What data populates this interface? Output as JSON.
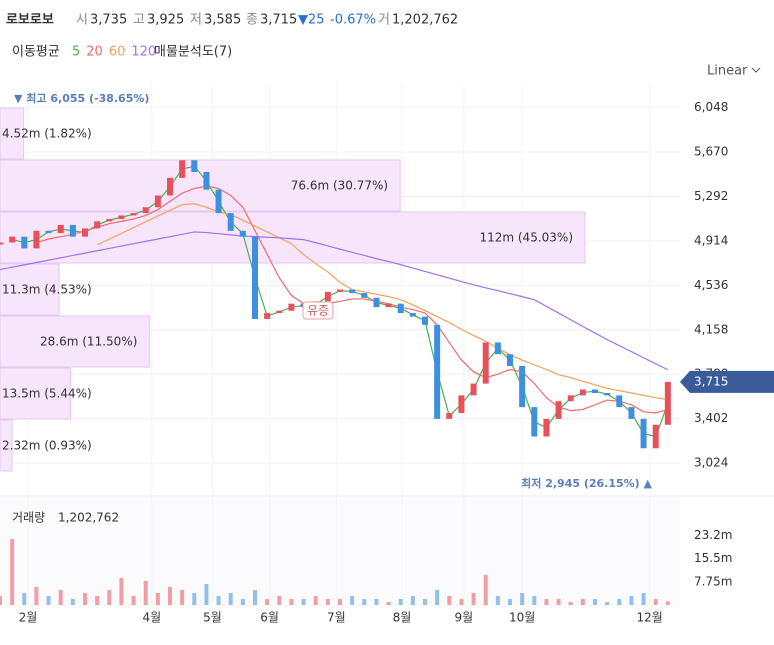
{
  "header": {
    "name": "로보로보",
    "open_label": "시",
    "open": "3,735",
    "high_label": "고",
    "high": "3,925",
    "low_label": "저",
    "low": "3,585",
    "close_label": "종",
    "close": "3,715",
    "change": "▼25",
    "change_pct": "-0.67%",
    "volume_label": "거",
    "volume": "1,202,762",
    "ma_title": "이동평균",
    "scale": "Linear"
  },
  "chart_data": {
    "type": "candlestick",
    "x": [
      0,
      1,
      2,
      3,
      4,
      5,
      6,
      7,
      8,
      9,
      10,
      11,
      12,
      13,
      14,
      15,
      16,
      17,
      18,
      19,
      20,
      21,
      22,
      23,
      24,
      25,
      26,
      27,
      28,
      29,
      30,
      31,
      32,
      33,
      34,
      35,
      36,
      37,
      38,
      39,
      40,
      41,
      42,
      43,
      44,
      45,
      46,
      47,
      48,
      49,
      50,
      51,
      52,
      53,
      54,
      55
    ],
    "xlim": [
      0,
      56
    ],
    "xticks": [
      {
        "value": 2.3,
        "label": "2월"
      },
      {
        "value": 12.5,
        "label": "4월"
      },
      {
        "value": 17.5,
        "label": "5월"
      },
      {
        "value": 22.2,
        "label": "6월"
      },
      {
        "value": 27.7,
        "label": "7월"
      },
      {
        "value": 33.1,
        "label": "8월"
      },
      {
        "value": 38.2,
        "label": "9월"
      },
      {
        "value": 43,
        "label": "10월"
      },
      {
        "value": 53.5,
        "label": "12월"
      }
    ],
    "ylim": [
      2880,
      6240
    ],
    "yticks": [
      {
        "value": 3024,
        "label": "3,024"
      },
      {
        "value": 3402,
        "label": "3,402"
      },
      {
        "value": 3780,
        "label": "3,780"
      },
      {
        "value": 4158,
        "label": "4,158"
      },
      {
        "value": 4536,
        "label": "4,536"
      },
      {
        "value": 4914,
        "label": "4,914"
      },
      {
        "value": 5292,
        "label": "5,292"
      },
      {
        "value": 5670,
        "label": "5,670"
      },
      {
        "value": 6048,
        "label": "6,048"
      }
    ],
    "close": [
      4900,
      4950,
      4850,
      5000,
      4980,
      5050,
      4950,
      5020,
      5080,
      5100,
      5130,
      5150,
      5200,
      5300,
      5450,
      5600,
      5500,
      5350,
      5150,
      5000,
      4950,
      4250,
      4300,
      4320,
      4380,
      4350,
      4400,
      4480,
      4500,
      4470,
      4430,
      4350,
      4380,
      4300,
      4270,
      4200,
      3400,
      3450,
      3600,
      3700,
      4050,
      3950,
      3850,
      3500,
      3250,
      3400,
      3550,
      3600,
      3650,
      3620,
      3600,
      3500,
      3400,
      3150,
      3350,
      3715
    ],
    "up_color": "#e8505b",
    "down_color": "#3d8fe0",
    "series": [
      {
        "name": "5",
        "color": "#4caf50",
        "values": [
          null,
          4925,
          4900,
          4925,
          4990,
          5015,
          5000,
          4985,
          5050,
          5090,
          5115,
          5140,
          5175,
          5250,
          5375,
          5525,
          5550,
          5425,
          5250,
          5075,
          4975,
          4600,
          4275,
          4310,
          4350,
          4365,
          4375,
          4440,
          4490,
          4485,
          4450,
          4390,
          4365,
          4340,
          4285,
          4235,
          3800,
          3425,
          3525,
          3650,
          3875,
          4000,
          3900,
          3675,
          3375,
          3325,
          3475,
          3575,
          3625,
          3635,
          3610,
          3550,
          3450,
          3275,
          3250,
          3530
        ]
      },
      {
        "name": "20",
        "color": "#f06a6a",
        "values": [
          null,
          null,
          null,
          4900,
          4930,
          4950,
          4970,
          5000,
          5030,
          5060,
          5080,
          5100,
          5130,
          5180,
          5250,
          5320,
          5360,
          5380,
          5360,
          5300,
          5200,
          5000,
          4800,
          4600,
          4450,
          4380,
          4360,
          4380,
          4400,
          4420,
          4420,
          4400,
          4380,
          4350,
          4330,
          4300,
          4200,
          4050,
          3900,
          3800,
          3750,
          3780,
          3820,
          3800,
          3700,
          3580,
          3500,
          3470,
          3480,
          3520,
          3560,
          3550,
          3520,
          3460,
          3450,
          3480
        ]
      },
      {
        "name": "60",
        "color": "#f5a05a",
        "values": [
          null,
          null,
          null,
          null,
          null,
          null,
          null,
          null,
          4880,
          4929,
          4978,
          5027,
          5076,
          5125,
          5174,
          5222,
          5230,
          5200,
          5160,
          5137,
          5090,
          5040,
          4990,
          4940,
          4890,
          4797,
          4720,
          4650,
          4560,
          4500,
          4480,
          4460,
          4440,
          4414,
          4370,
          4320,
          4270,
          4220,
          4160,
          4110,
          4060,
          4000,
          3946,
          3900,
          3860,
          3820,
          3776,
          3750,
          3720,
          3690,
          3660,
          3640,
          3620,
          3600,
          3580,
          3563
        ]
      },
      {
        "name": "120",
        "color": "#a070f0",
        "values": [
          4670,
          4690,
          4710,
          4730,
          4750,
          4770,
          4790,
          4810,
          4830,
          4850,
          4870,
          4890,
          4910,
          4930,
          4950,
          4970,
          4990,
          4985,
          4975,
          4965,
          4955,
          4950,
          4945,
          4940,
          4932,
          4925,
          4898,
          4871,
          4844,
          4817,
          4790,
          4763,
          4738,
          4712,
          4683,
          4654,
          4625,
          4597,
          4568,
          4540,
          4515,
          4490,
          4465,
          4440,
          4414,
          4357,
          4300,
          4243,
          4186,
          4130,
          4074,
          4023,
          3972,
          3920,
          3869,
          3818
        ]
      }
    ],
    "volume_profile": {
      "title": "매물분석도(7)",
      "values": [
        4.52,
        76.6,
        112,
        11.3,
        28.6,
        13.5,
        2.32
      ],
      "value_labels": [
        "4.52m (1.82%)",
        "76.6m (30.77%)",
        "112m (45.03%)",
        "11.3m (4.53%)",
        "28.6m (11.50%)",
        "13.5m (5.44%)",
        "2.32m (0.93%)"
      ],
      "color": "#f7e6fb"
    },
    "annotations": {
      "high": "▼ 최고 6,055 (-38.65%)",
      "low": "최저 2,945 (26.15%) ▲",
      "event": "유증"
    },
    "volume": {
      "name": "거래량",
      "label": "1,202,762",
      "ylim": [
        0,
        35
      ],
      "yticks": [
        {
          "value": 7.75,
          "label": "7.75m"
        },
        {
          "value": 15.5,
          "label": "15.5m"
        },
        {
          "value": 23.2,
          "label": "23.2m"
        }
      ],
      "values": [
        3,
        22,
        4,
        6,
        3,
        5,
        2,
        4,
        3,
        5,
        9,
        3,
        8,
        4,
        6,
        5,
        4,
        7,
        3,
        4,
        2,
        5,
        2,
        3,
        2,
        2,
        3,
        2,
        2,
        3,
        2,
        2,
        1,
        2,
        3,
        2,
        5,
        3,
        2,
        4,
        10,
        3,
        2,
        4,
        3,
        2,
        2,
        1,
        2,
        2,
        1,
        2,
        3,
        4,
        2,
        1.2
      ]
    }
  }
}
